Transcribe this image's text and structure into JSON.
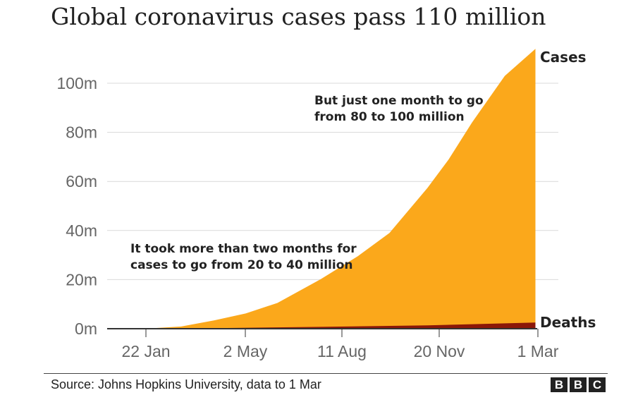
{
  "title": "Global coronavirus cases pass 110 million",
  "source": "Source: Johns Hopkins University, data to 1 Mar",
  "logo_text": "BBC",
  "colors": {
    "cases": "#fba81b",
    "deaths": "#8b1708",
    "grid": "#d9d9d9",
    "axis": "#333333"
  },
  "chart_data": {
    "type": "area",
    "title": "Global coronavirus cases pass 110 million",
    "x_unit": "day of 2020/21",
    "x_ticks": [
      "22 Jan",
      "2 May",
      "11 Aug",
      "20 Nov",
      "1 Mar"
    ],
    "y_ticks": [
      "0m",
      "20m",
      "40m",
      "60m",
      "80m",
      "100m"
    ],
    "ylim": [
      0,
      110
    ],
    "grid": true,
    "series": [
      {
        "name": "Cases",
        "dates": [
          "22 Jan",
          "29 Feb",
          "1 Apr",
          "2 May",
          "1 Jun",
          "1 Jul",
          "11 Aug",
          "15 Sep",
          "15 Oct",
          "20 Nov",
          "10 Dec",
          "1 Jan",
          "1 Feb",
          "1 Mar"
        ],
        "values": [
          0.0,
          0.1,
          0.9,
          3.4,
          6.2,
          10.5,
          20.2,
          29.5,
          39.0,
          57.4,
          69.0,
          84.0,
          103.0,
          114.0
        ]
      },
      {
        "name": "Deaths",
        "dates": [
          "22 Jan",
          "1 Apr",
          "2 May",
          "11 Aug",
          "20 Nov",
          "1 Jan",
          "1 Mar"
        ],
        "values": [
          0.0,
          0.05,
          0.24,
          0.74,
          1.37,
          1.85,
          2.53
        ]
      }
    ],
    "annotations": [
      {
        "lines": [
          "But just one month to go",
          "from 80 to 100 million"
        ]
      },
      {
        "lines": [
          "It took more than two months for",
          "cases to go from 20 to 40 million"
        ]
      }
    ]
  }
}
